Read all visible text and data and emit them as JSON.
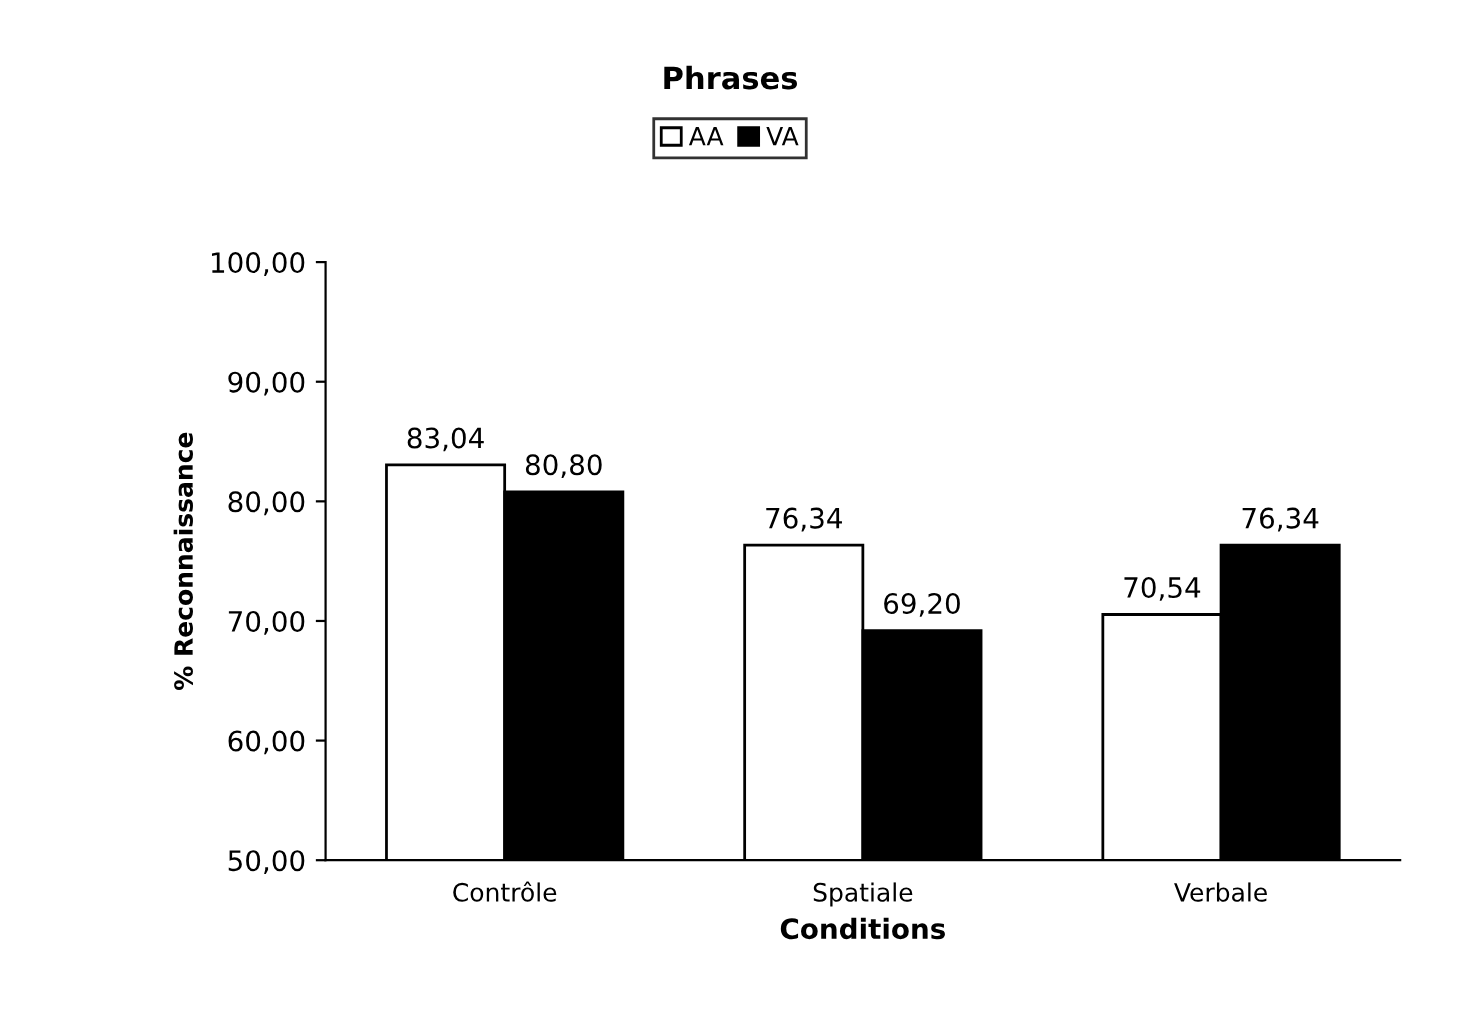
{
  "chart_data": {
    "type": "bar",
    "title": "Phrases",
    "xlabel": "Conditions",
    "ylabel": "% Reconnaissance",
    "categories": [
      "Contrôle",
      "Spatiale",
      "Verbale"
    ],
    "series": [
      {
        "name": "AA",
        "color": "#ffffff",
        "values": [
          83.04,
          76.34,
          70.54
        ],
        "value_labels": [
          "83,04",
          "76,34",
          "70,54"
        ]
      },
      {
        "name": "VA",
        "color": "#000000",
        "values": [
          80.8,
          69.2,
          76.34
        ],
        "value_labels": [
          "80,80",
          "69,20",
          "76,34"
        ]
      }
    ],
    "ylim": [
      50,
      100
    ],
    "yticks": [
      {
        "value": 50,
        "label": "50,00"
      },
      {
        "value": 60,
        "label": "60,00"
      },
      {
        "value": 70,
        "label": "70,00"
      },
      {
        "value": 80,
        "label": "80,00"
      },
      {
        "value": 90,
        "label": "90,00"
      },
      {
        "value": 100,
        "label": "100,00"
      }
    ],
    "grid": false,
    "legend": "top"
  }
}
